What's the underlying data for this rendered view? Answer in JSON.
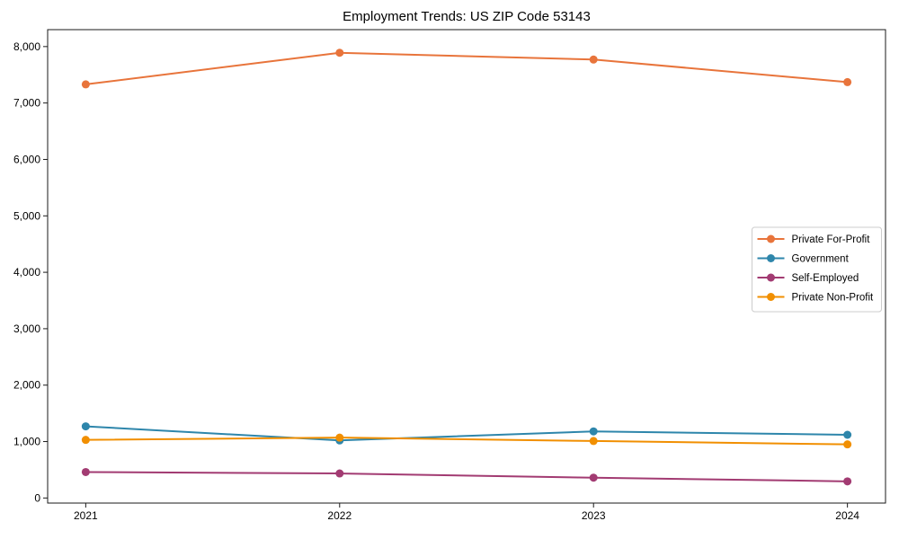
{
  "chart_data": {
    "type": "line",
    "title": "Employment Trends: US ZIP Code 53143",
    "x": [
      "2021",
      "2022",
      "2023",
      "2024"
    ],
    "series": [
      {
        "name": "Private For-Profit",
        "color": "#E8743B",
        "values": [
          7330,
          7890,
          7770,
          7370
        ]
      },
      {
        "name": "Government",
        "color": "#2E86AB",
        "values": [
          1270,
          1020,
          1180,
          1120
        ]
      },
      {
        "name": "Self-Employed",
        "color": "#A23B72",
        "values": [
          460,
          435,
          360,
          295
        ]
      },
      {
        "name": "Private Non-Profit",
        "color": "#F18F01",
        "values": [
          1030,
          1070,
          1010,
          950
        ]
      }
    ],
    "xlabel": "",
    "ylabel": "",
    "ylim": [
      -90,
      8300
    ],
    "yticks": [
      0,
      1000,
      2000,
      3000,
      4000,
      5000,
      6000,
      7000,
      8000
    ],
    "ytick_labels": [
      "0",
      "1,000",
      "2,000",
      "3,000",
      "4,000",
      "5,000",
      "6,000",
      "7,000",
      "8,000"
    ],
    "legend_position": "center-right",
    "grid": false,
    "marker": "circle"
  },
  "style_colors": {
    "axis_line": "#1a1a1a",
    "tick_text": "#000000",
    "legend_border": "#cccccc",
    "legend_background": "#ffffff",
    "plot_background": "#ffffff"
  }
}
